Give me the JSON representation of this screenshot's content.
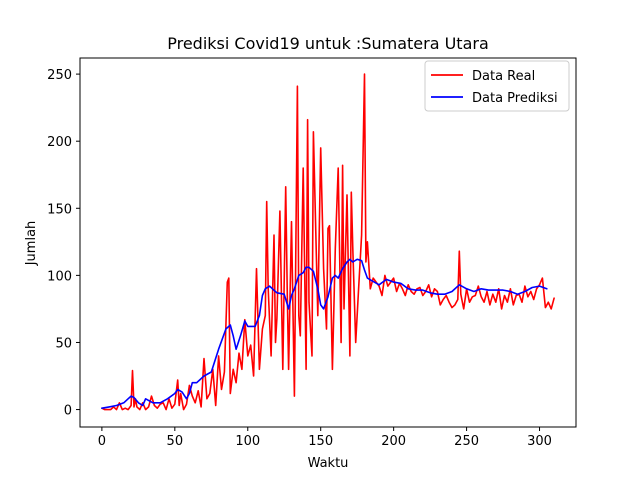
{
  "chart_data": {
    "type": "line",
    "title": "Prediksi Covid19 untuk :Sumatera Utara",
    "xlabel": "Waktu",
    "ylabel": "Jumlah",
    "xlim": [
      -15,
      325
    ],
    "ylim": [
      -13,
      262
    ],
    "xticks": [
      0,
      50,
      100,
      150,
      200,
      250,
      300
    ],
    "yticks": [
      0,
      50,
      100,
      150,
      200,
      250
    ],
    "grid": false,
    "legend_position": "top-right",
    "colors": {
      "real": "#ff0000",
      "prediksi": "#0000ff"
    },
    "series": [
      {
        "name": "Data Real",
        "color": "#ff0000",
        "x": [
          0,
          2,
          4,
          6,
          8,
          10,
          12,
          14,
          16,
          18,
          20,
          21,
          22,
          23,
          24,
          26,
          28,
          30,
          32,
          34,
          36,
          38,
          40,
          42,
          44,
          46,
          48,
          50,
          52,
          53,
          54,
          56,
          58,
          60,
          62,
          64,
          66,
          68,
          70,
          72,
          74,
          76,
          78,
          80,
          82,
          84,
          86,
          87,
          88,
          90,
          92,
          94,
          96,
          98,
          100,
          102,
          104,
          106,
          108,
          110,
          112,
          113,
          114,
          116,
          118,
          119,
          120,
          122,
          124,
          126,
          127,
          128,
          130,
          132,
          134,
          135,
          136,
          138,
          140,
          141,
          142,
          144,
          145,
          146,
          148,
          150,
          152,
          154,
          155,
          156,
          158,
          160,
          162,
          164,
          165,
          166,
          168,
          170,
          171,
          172,
          174,
          176,
          178,
          180,
          181,
          182,
          184,
          186,
          188,
          190,
          192,
          194,
          196,
          198,
          200,
          202,
          204,
          206,
          208,
          210,
          212,
          214,
          216,
          218,
          220,
          222,
          224,
          226,
          228,
          230,
          232,
          234,
          236,
          238,
          240,
          242,
          244,
          245,
          246,
          248,
          250,
          252,
          254,
          256,
          258,
          260,
          262,
          264,
          266,
          268,
          270,
          272,
          274,
          276,
          278,
          280,
          282,
          284,
          286,
          288,
          290,
          292,
          294,
          296,
          298,
          300,
          302,
          304,
          306,
          308,
          310
        ],
        "values": [
          1,
          0,
          0,
          0,
          2,
          0,
          5,
          0,
          1,
          0,
          3,
          29,
          2,
          8,
          2,
          0,
          5,
          0,
          2,
          10,
          3,
          1,
          4,
          5,
          0,
          8,
          1,
          4,
          22,
          3,
          12,
          0,
          4,
          18,
          10,
          5,
          14,
          2,
          38,
          8,
          12,
          30,
          3,
          40,
          15,
          28,
          95,
          98,
          12,
          30,
          20,
          42,
          30,
          67,
          40,
          48,
          25,
          105,
          30,
          60,
          70,
          155,
          90,
          40,
          130,
          50,
          68,
          148,
          30,
          166,
          90,
          30,
          140,
          10,
          241,
          70,
          55,
          180,
          30,
          216,
          80,
          40,
          207,
          160,
          70,
          195,
          105,
          60,
          135,
          137,
          30,
          120,
          180,
          50,
          182,
          75,
          160,
          40,
          162,
          120,
          50,
          90,
          130,
          250,
          110,
          125,
          90,
          98,
          95,
          92,
          85,
          100,
          92,
          95,
          98,
          88,
          94,
          90,
          85,
          93,
          88,
          86,
          90,
          91,
          85,
          88,
          93,
          84,
          90,
          88,
          78,
          82,
          85,
          80,
          76,
          78,
          82,
          118,
          86,
          75,
          90,
          80,
          84,
          85,
          92,
          84,
          80,
          88,
          78,
          86,
          80,
          90,
          75,
          85,
          80,
          90,
          78,
          85,
          86,
          80,
          92,
          84,
          88,
          82,
          90,
          93,
          98,
          76,
          80,
          75,
          83
        ]
      },
      {
        "name": "Data Prediksi",
        "color": "#0000ff",
        "x": [
          0,
          5,
          10,
          15,
          18,
          20,
          22,
          25,
          28,
          30,
          35,
          40,
          45,
          50,
          52,
          55,
          58,
          60,
          62,
          65,
          70,
          75,
          80,
          85,
          88,
          90,
          92,
          95,
          98,
          100,
          105,
          108,
          110,
          112,
          115,
          120,
          125,
          128,
          130,
          132,
          135,
          138,
          140,
          142,
          145,
          148,
          150,
          152,
          155,
          158,
          160,
          162,
          165,
          168,
          170,
          172,
          175,
          178,
          180,
          182,
          185,
          190,
          195,
          200,
          205,
          210,
          215,
          220,
          225,
          230,
          235,
          240,
          245,
          250,
          255,
          260,
          265,
          270,
          275,
          280,
          285,
          290,
          295,
          300,
          305
        ],
        "values": [
          1,
          2,
          3,
          5,
          8,
          10,
          9,
          5,
          3,
          8,
          5,
          5,
          8,
          12,
          15,
          13,
          8,
          12,
          20,
          20,
          25,
          28,
          45,
          60,
          63,
          55,
          45,
          55,
          66,
          62,
          62,
          70,
          85,
          90,
          92,
          87,
          86,
          75,
          85,
          90,
          100,
          102,
          106,
          106,
          103,
          90,
          78,
          75,
          84,
          98,
          100,
          98,
          105,
          110,
          112,
          110,
          112,
          111,
          104,
          98,
          96,
          93,
          97,
          95,
          94,
          90,
          89,
          89,
          87,
          86,
          86,
          88,
          93,
          90,
          88,
          90,
          89,
          89,
          89,
          88,
          86,
          88,
          91,
          92,
          90
        ]
      }
    ]
  }
}
